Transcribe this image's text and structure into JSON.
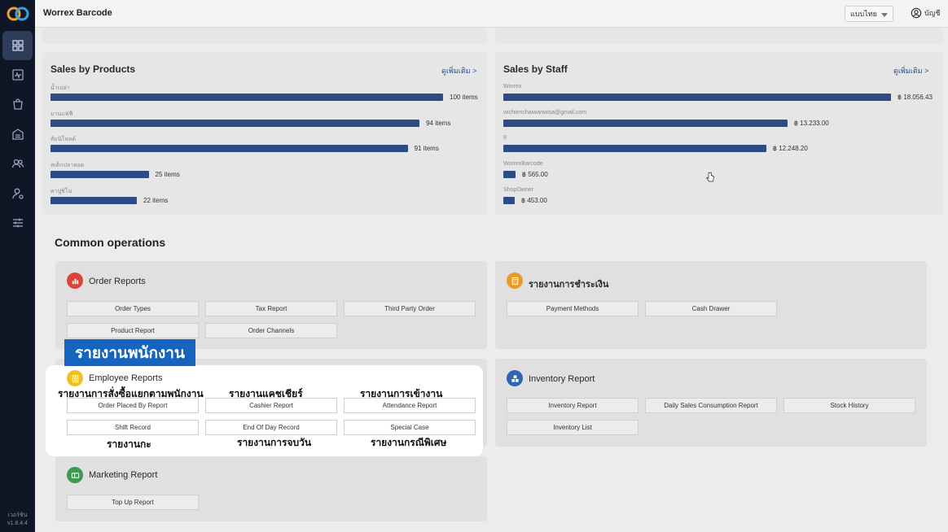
{
  "app": {
    "title": "Worrex Barcode",
    "version_label": "เวอร์ชัน",
    "version": "v1.8.4.4"
  },
  "topbar": {
    "language": "แบบไทย",
    "account_label": "บัญชี"
  },
  "sales_by_products": {
    "title": "Sales by Products",
    "see_more": "ดูเพิ่มเติม >",
    "items": [
      {
        "label": "น้ำเปล่า",
        "value": "100 items",
        "amount": 100
      },
      {
        "label": "บานแฟฟี",
        "value": "94 items",
        "amount": 94
      },
      {
        "label": "ส้มนิโหลด์",
        "value": "91 items",
        "amount": 91
      },
      {
        "label": "สเต็กปลาทอด",
        "value": "25 items",
        "amount": 25
      },
      {
        "label": "คาปูชิโน่",
        "value": "22 items",
        "amount": 22
      }
    ]
  },
  "sales_by_staff": {
    "title": "Sales by Staff",
    "see_more": "ดูเพิ่มเติม >",
    "items": [
      {
        "label": "Worrex",
        "value": "฿ 18.056.43",
        "amount": 18056.43
      },
      {
        "label": "wichienchaiwanwisa@gmail.com",
        "value": "฿ 13.233.00",
        "amount": 13233
      },
      {
        "label": "9",
        "value": "฿ 12.248.20",
        "amount": 12248.2
      },
      {
        "label": "WorrexBarcode",
        "value": "฿ 565.00",
        "amount": 565
      },
      {
        "label": "ShopOwner",
        "value": "฿ 453.00",
        "amount": 453
      }
    ]
  },
  "common_operations": {
    "title": "Common operations",
    "order_reports": {
      "title": "Order Reports",
      "buttons": [
        "Order Types",
        "Tax Report",
        "Third Party Order",
        "Product Report",
        "Order Channels"
      ]
    },
    "payment_reports": {
      "title": "รายงานการชำระเงิน",
      "buttons": [
        "Payment Methods",
        "Cash Drawer"
      ]
    },
    "employee_reports": {
      "title": "Employee Reports",
      "buttons": [
        "Order Placed By Report",
        "Cashier Report",
        "Attendance Report",
        "Shift Record",
        "End Of Day Record",
        "Special Case"
      ]
    },
    "inventory_report": {
      "title": "Inventory Report",
      "buttons": [
        "Inventory Report",
        "Daily Sales Consumption Report",
        "Stock History",
        "Inventory List"
      ]
    },
    "marketing_report": {
      "title": "Marketing Report",
      "buttons": [
        "Top Up Report"
      ]
    }
  },
  "overlay": {
    "banner": "รายงานพนักงาน",
    "captions": [
      "รายงานการสั่งซื้อแยกตามพนักงาน",
      "รายงานแคชเชียร์",
      "รายงานการเข้างาน",
      "รายงานกะ",
      "รายงานการจบวัน",
      "รายงานกรณีพิเศษ"
    ]
  },
  "colors": {
    "sidebar": "#0f1626",
    "bar": "#2f4b86",
    "link": "#1f4f96",
    "banner": "#1565c0"
  }
}
